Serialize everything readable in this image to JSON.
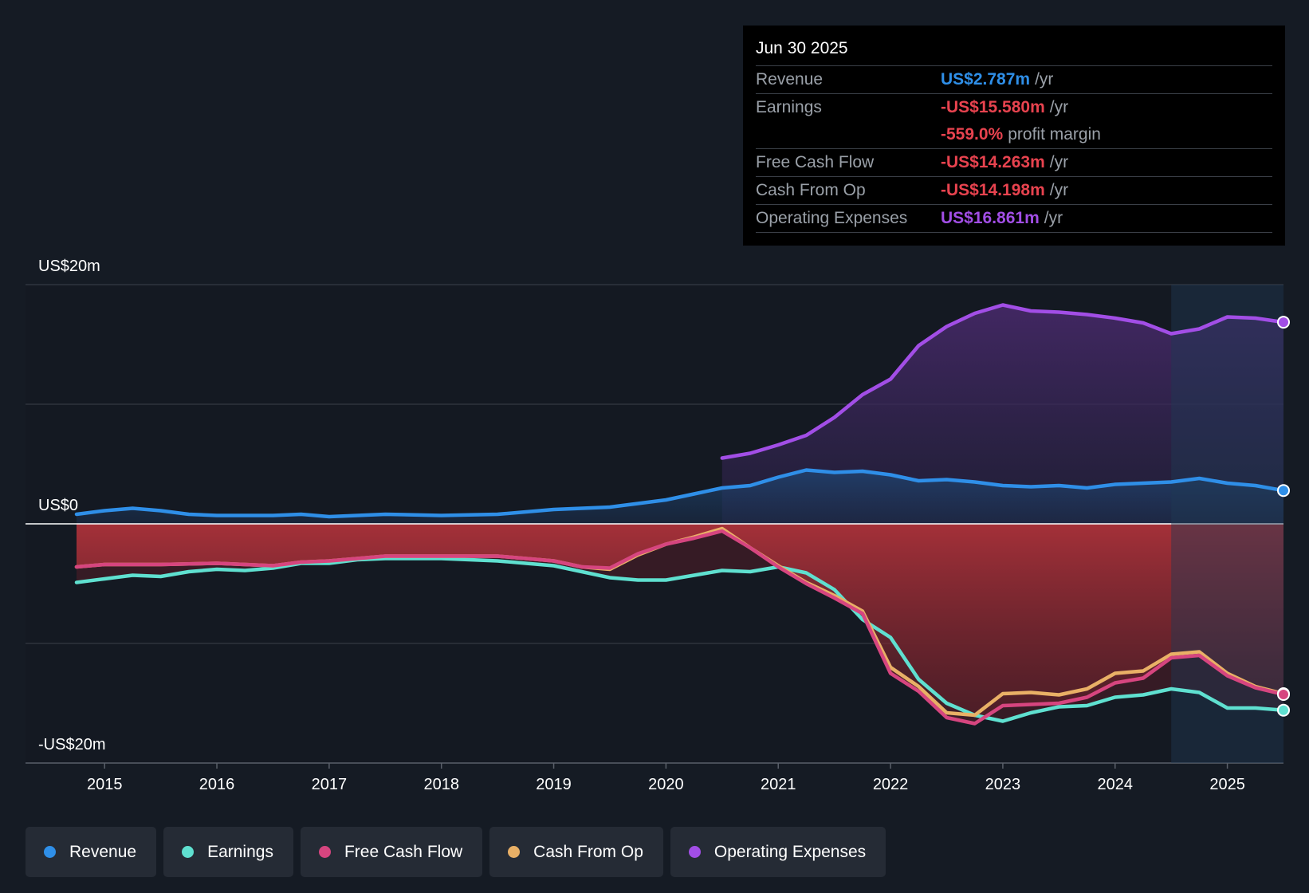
{
  "tooltip": {
    "date": "Jun 30 2025",
    "revenue": {
      "label": "Revenue",
      "value": "US$2.787m",
      "unit": "/yr"
    },
    "earnings": {
      "label": "Earnings",
      "value": "-US$15.580m",
      "unit": "/yr"
    },
    "margin": {
      "value": "-559.0%",
      "unit": "profit margin"
    },
    "fcf": {
      "label": "Free Cash Flow",
      "value": "-US$14.263m",
      "unit": "/yr"
    },
    "cfo": {
      "label": "Cash From Op",
      "value": "-US$14.198m",
      "unit": "/yr"
    },
    "opex": {
      "label": "Operating Expenses",
      "value": "US$16.861m",
      "unit": "/yr"
    }
  },
  "colors": {
    "revenue": "#2f8fe8",
    "earnings": "#5fe0d0",
    "fcf": "#d6457f",
    "cfo": "#e9b066",
    "opex": "#a24ee6",
    "negative": "#e8434f",
    "positive": "#2f8fe8"
  },
  "chart_data": {
    "type": "line",
    "ylabels": {
      "top": "US$20m",
      "zero": "US$0",
      "bottom": "-US$20m"
    },
    "ylim": [
      -20,
      20
    ],
    "xlim": [
      2014.75,
      2025.5
    ],
    "forecast_start": 2024.5,
    "xticks": [
      {
        "x": 2015,
        "label": "2015"
      },
      {
        "x": 2016,
        "label": "2016"
      },
      {
        "x": 2017,
        "label": "2017"
      },
      {
        "x": 2018,
        "label": "2018"
      },
      {
        "x": 2019,
        "label": "2019"
      },
      {
        "x": 2020,
        "label": "2020"
      },
      {
        "x": 2021,
        "label": "2021"
      },
      {
        "x": 2022,
        "label": "2022"
      },
      {
        "x": 2023,
        "label": "2023"
      },
      {
        "x": 2024,
        "label": "2024"
      },
      {
        "x": 2025,
        "label": "2025"
      }
    ],
    "series": [
      {
        "key": "revenue",
        "name": "Revenue",
        "points": [
          [
            2014.75,
            0.8
          ],
          [
            2015.0,
            1.1
          ],
          [
            2015.25,
            1.3
          ],
          [
            2015.5,
            1.1
          ],
          [
            2015.75,
            0.8
          ],
          [
            2016.0,
            0.7
          ],
          [
            2016.5,
            0.7
          ],
          [
            2016.75,
            0.8
          ],
          [
            2017.0,
            0.6
          ],
          [
            2017.5,
            0.8
          ],
          [
            2018.0,
            0.7
          ],
          [
            2018.5,
            0.8
          ],
          [
            2019.0,
            1.2
          ],
          [
            2019.5,
            1.4
          ],
          [
            2019.75,
            1.7
          ],
          [
            2020.0,
            2.0
          ],
          [
            2020.25,
            2.5
          ],
          [
            2020.5,
            3.0
          ],
          [
            2020.75,
            3.2
          ],
          [
            2021.0,
            3.9
          ],
          [
            2021.25,
            4.5
          ],
          [
            2021.5,
            4.3
          ],
          [
            2021.75,
            4.4
          ],
          [
            2022.0,
            4.1
          ],
          [
            2022.25,
            3.6
          ],
          [
            2022.5,
            3.7
          ],
          [
            2022.75,
            3.5
          ],
          [
            2023.0,
            3.2
          ],
          [
            2023.25,
            3.1
          ],
          [
            2023.5,
            3.2
          ],
          [
            2023.75,
            3.0
          ],
          [
            2024.0,
            3.3
          ],
          [
            2024.25,
            3.4
          ],
          [
            2024.5,
            3.5
          ],
          [
            2024.75,
            3.8
          ],
          [
            2025.0,
            3.4
          ],
          [
            2025.25,
            3.2
          ],
          [
            2025.5,
            2.787
          ]
        ]
      },
      {
        "key": "earnings",
        "name": "Earnings",
        "points": [
          [
            2014.75,
            -4.9
          ],
          [
            2015.0,
            -4.6
          ],
          [
            2015.25,
            -4.3
          ],
          [
            2015.5,
            -4.4
          ],
          [
            2015.75,
            -4.0
          ],
          [
            2016.0,
            -3.8
          ],
          [
            2016.25,
            -3.9
          ],
          [
            2016.5,
            -3.7
          ],
          [
            2016.75,
            -3.3
          ],
          [
            2017.0,
            -3.3
          ],
          [
            2017.25,
            -3.0
          ],
          [
            2017.5,
            -2.9
          ],
          [
            2018.0,
            -2.9
          ],
          [
            2018.5,
            -3.1
          ],
          [
            2019.0,
            -3.5
          ],
          [
            2019.25,
            -4.0
          ],
          [
            2019.5,
            -4.5
          ],
          [
            2019.75,
            -4.7
          ],
          [
            2020.0,
            -4.7
          ],
          [
            2020.25,
            -4.3
          ],
          [
            2020.5,
            -3.9
          ],
          [
            2020.75,
            -4.0
          ],
          [
            2021.0,
            -3.6
          ],
          [
            2021.25,
            -4.1
          ],
          [
            2021.5,
            -5.5
          ],
          [
            2021.75,
            -8.0
          ],
          [
            2022.0,
            -9.5
          ],
          [
            2022.25,
            -13.0
          ],
          [
            2022.5,
            -15.0
          ],
          [
            2022.75,
            -16.0
          ],
          [
            2023.0,
            -16.5
          ],
          [
            2023.25,
            -15.8
          ],
          [
            2023.5,
            -15.3
          ],
          [
            2023.75,
            -15.2
          ],
          [
            2024.0,
            -14.5
          ],
          [
            2024.25,
            -14.3
          ],
          [
            2024.5,
            -13.8
          ],
          [
            2024.75,
            -14.1
          ],
          [
            2025.0,
            -15.4
          ],
          [
            2025.25,
            -15.4
          ],
          [
            2025.5,
            -15.58
          ]
        ]
      },
      {
        "key": "fcf",
        "name": "Free Cash Flow",
        "points": [
          [
            2014.75,
            -3.6
          ],
          [
            2015.0,
            -3.4
          ],
          [
            2015.5,
            -3.4
          ],
          [
            2016.0,
            -3.3
          ],
          [
            2016.5,
            -3.5
          ],
          [
            2016.75,
            -3.2
          ],
          [
            2017.0,
            -3.1
          ],
          [
            2017.5,
            -2.7
          ],
          [
            2018.0,
            -2.7
          ],
          [
            2018.5,
            -2.7
          ],
          [
            2019.0,
            -3.1
          ],
          [
            2019.25,
            -3.6
          ],
          [
            2019.5,
            -3.7
          ],
          [
            2019.75,
            -2.5
          ],
          [
            2020.0,
            -1.7
          ],
          [
            2020.25,
            -1.2
          ],
          [
            2020.5,
            -0.6
          ],
          [
            2020.75,
            -2.0
          ],
          [
            2021.0,
            -3.6
          ],
          [
            2021.25,
            -5.0
          ],
          [
            2021.5,
            -6.2
          ],
          [
            2021.75,
            -7.5
          ],
          [
            2022.0,
            -12.5
          ],
          [
            2022.25,
            -14.0
          ],
          [
            2022.5,
            -16.2
          ],
          [
            2022.75,
            -16.7
          ],
          [
            2023.0,
            -15.2
          ],
          [
            2023.25,
            -15.1
          ],
          [
            2023.5,
            -15.0
          ],
          [
            2023.75,
            -14.5
          ],
          [
            2024.0,
            -13.3
          ],
          [
            2024.25,
            -12.9
          ],
          [
            2024.5,
            -11.2
          ],
          [
            2024.75,
            -11.0
          ],
          [
            2025.0,
            -12.7
          ],
          [
            2025.25,
            -13.7
          ],
          [
            2025.5,
            -14.263
          ]
        ]
      },
      {
        "key": "cfo",
        "name": "Cash From Op",
        "points": [
          [
            2014.75,
            -3.6
          ],
          [
            2015.0,
            -3.4
          ],
          [
            2015.5,
            -3.4
          ],
          [
            2016.0,
            -3.3
          ],
          [
            2016.5,
            -3.5
          ],
          [
            2016.75,
            -3.2
          ],
          [
            2017.0,
            -3.1
          ],
          [
            2017.5,
            -2.7
          ],
          [
            2018.0,
            -2.7
          ],
          [
            2018.5,
            -2.7
          ],
          [
            2019.0,
            -3.1
          ],
          [
            2019.25,
            -3.6
          ],
          [
            2019.5,
            -3.8
          ],
          [
            2019.75,
            -2.6
          ],
          [
            2020.0,
            -1.7
          ],
          [
            2020.25,
            -1.1
          ],
          [
            2020.5,
            -0.4
          ],
          [
            2020.75,
            -2.0
          ],
          [
            2021.0,
            -3.5
          ],
          [
            2021.25,
            -4.9
          ],
          [
            2021.5,
            -6.0
          ],
          [
            2021.75,
            -7.3
          ],
          [
            2022.0,
            -12.0
          ],
          [
            2022.25,
            -13.6
          ],
          [
            2022.5,
            -15.8
          ],
          [
            2022.75,
            -16.0
          ],
          [
            2023.0,
            -14.2
          ],
          [
            2023.25,
            -14.1
          ],
          [
            2023.5,
            -14.3
          ],
          [
            2023.75,
            -13.8
          ],
          [
            2024.0,
            -12.5
          ],
          [
            2024.25,
            -12.3
          ],
          [
            2024.5,
            -10.9
          ],
          [
            2024.75,
            -10.7
          ],
          [
            2025.0,
            -12.5
          ],
          [
            2025.25,
            -13.6
          ],
          [
            2025.5,
            -14.198
          ]
        ]
      },
      {
        "key": "opex",
        "name": "Operating Expenses",
        "points": [
          [
            2020.5,
            5.5
          ],
          [
            2020.75,
            5.9
          ],
          [
            2021.0,
            6.6
          ],
          [
            2021.25,
            7.4
          ],
          [
            2021.5,
            8.9
          ],
          [
            2021.75,
            10.8
          ],
          [
            2022.0,
            12.1
          ],
          [
            2022.25,
            14.9
          ],
          [
            2022.5,
            16.5
          ],
          [
            2022.75,
            17.6
          ],
          [
            2023.0,
            18.3
          ],
          [
            2023.25,
            17.8
          ],
          [
            2023.5,
            17.7
          ],
          [
            2023.75,
            17.5
          ],
          [
            2024.0,
            17.2
          ],
          [
            2024.25,
            16.8
          ],
          [
            2024.5,
            15.9
          ],
          [
            2024.75,
            16.3
          ],
          [
            2025.0,
            17.3
          ],
          [
            2025.25,
            17.2
          ],
          [
            2025.5,
            16.861
          ]
        ]
      }
    ],
    "legend": [
      "Revenue",
      "Earnings",
      "Free Cash Flow",
      "Cash From Op",
      "Operating Expenses"
    ]
  }
}
